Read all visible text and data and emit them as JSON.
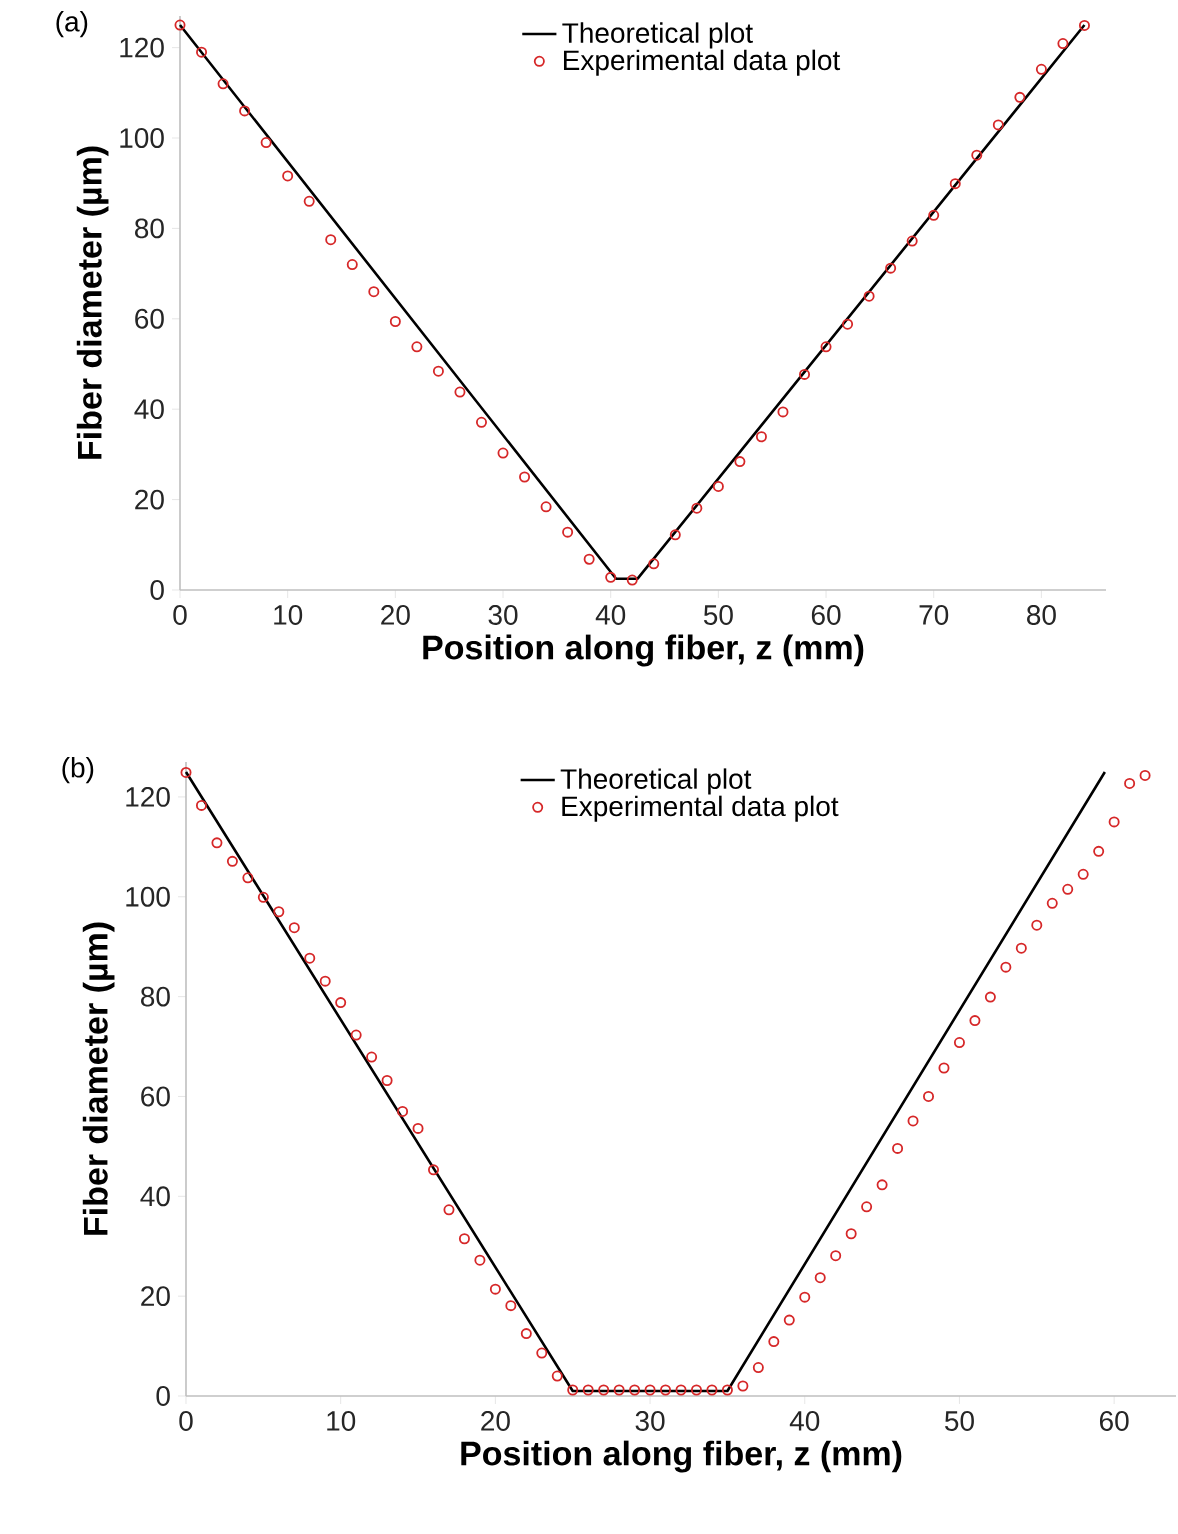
{
  "chart_data": [
    {
      "type": "line",
      "xlabel": "Position along fiber, z (mm)",
      "ylabel": "Fiber diameter (µm)",
      "annotations": [
        "(a)"
      ],
      "xlim": [
        0,
        86
      ],
      "ylim": [
        0,
        127
      ],
      "xticks": [
        0,
        10,
        20,
        30,
        40,
        50,
        60,
        70,
        80
      ],
      "yticks": [
        0,
        20,
        40,
        60,
        80,
        100,
        120
      ],
      "legend": "top right",
      "series": [
        {
          "name": "Theoretical plot",
          "type": "line",
          "color": "#000000",
          "marker": "none",
          "x": [
            0,
            40.5,
            42.5,
            84
          ],
          "values": [
            125,
            2.5,
            2.5,
            125
          ]
        },
        {
          "name": "Experimental data plot",
          "type": "scatter",
          "color": "#d62728",
          "marker": "circle",
          "x": [
            0,
            2,
            4,
            6,
            8,
            10,
            12,
            14,
            16,
            18,
            20,
            22,
            24,
            26,
            28,
            30,
            32,
            34,
            36,
            38,
            40,
            42,
            44,
            46,
            48,
            50,
            52,
            54,
            56,
            58,
            60,
            62,
            64,
            66,
            68,
            70,
            72,
            74,
            76,
            78,
            80,
            82,
            84
          ],
          "values": [
            125,
            119,
            112,
            106,
            99,
            91.6,
            86,
            77.5,
            72,
            66,
            59.4,
            53.8,
            48.4,
            43.8,
            37.1,
            30.3,
            25,
            18.4,
            12.8,
            6.8,
            2.8,
            2.2,
            5.8,
            12.2,
            18.1,
            22.9,
            28.4,
            33.9,
            39.4,
            47.7,
            53.8,
            58.8,
            65,
            71.2,
            77.2,
            82.9,
            89.9,
            96.2,
            102.9,
            109,
            115.2,
            120.9,
            124.9
          ]
        }
      ]
    },
    {
      "type": "line",
      "xlabel": "Position along fiber, z (mm)",
      "ylabel": "Fiber diameter (µm)",
      "annotations": [
        "(b)"
      ],
      "xlim": [
        0,
        64
      ],
      "ylim": [
        0,
        127
      ],
      "xticks": [
        0,
        10,
        20,
        30,
        40,
        50,
        60
      ],
      "yticks": [
        0,
        20,
        40,
        60,
        80,
        100,
        120
      ],
      "legend": "top",
      "series": [
        {
          "name": "Theoretical plot",
          "type": "line",
          "color": "#000000",
          "marker": "none",
          "x": [
            0,
            25,
            35,
            59.4
          ],
          "values": [
            125,
            1,
            1,
            125
          ]
        },
        {
          "name": "Experimental data plot",
          "type": "scatter",
          "color": "#d62728",
          "marker": "circle",
          "x": [
            0,
            1,
            2,
            3,
            4,
            5,
            6,
            7,
            8,
            9,
            10,
            11,
            12,
            13,
            14,
            15,
            16,
            17,
            18,
            19,
            20,
            21,
            22,
            23,
            24,
            25,
            26,
            27,
            28,
            29,
            30,
            31,
            32,
            33,
            34,
            35,
            36,
            37,
            38,
            39,
            40,
            41,
            42,
            43,
            44,
            45,
            46,
            47,
            48,
            49,
            50,
            51,
            52,
            53,
            54,
            55,
            56,
            57,
            58,
            59,
            60,
            61,
            62
          ],
          "values": [
            124.9,
            118.3,
            110.8,
            107.1,
            103.8,
            99.9,
            97,
            93.8,
            87.7,
            83.1,
            78.8,
            72.3,
            67.9,
            63.2,
            57,
            53.6,
            45.3,
            37.3,
            31.5,
            27.2,
            21.4,
            18.1,
            12.5,
            8.6,
            4,
            1.2,
            1.2,
            1.2,
            1.2,
            1.2,
            1.2,
            1.2,
            1.2,
            1.2,
            1.2,
            1.2,
            2,
            5.7,
            10.9,
            15.2,
            19.8,
            23.7,
            28.1,
            32.5,
            37.9,
            42.3,
            49.6,
            55.1,
            60,
            65.7,
            70.8,
            75.2,
            79.9,
            85.9,
            89.7,
            94.3,
            98.7,
            101.5,
            104.5,
            109.1,
            115,
            122.7,
            124.3
          ]
        }
      ]
    }
  ]
}
